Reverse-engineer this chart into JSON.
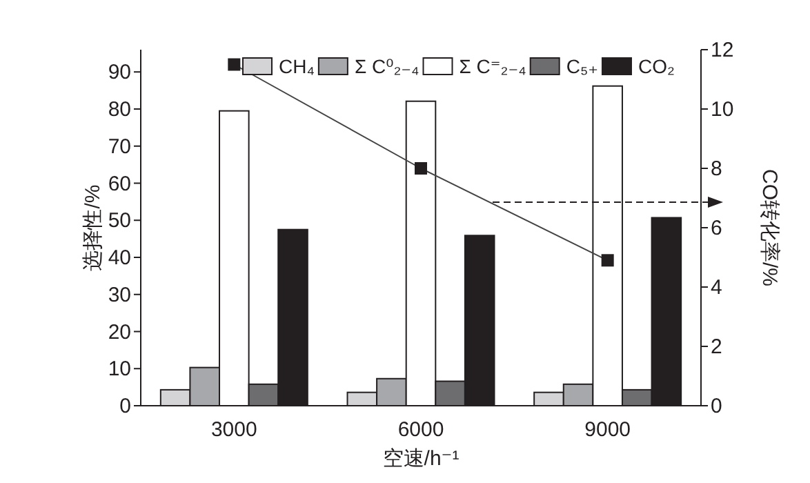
{
  "chart_data": {
    "type": "bar",
    "xlabel": "空速/h⁻¹",
    "ylabel": "选择性/%",
    "y2label": "CO转化率/%",
    "categories": [
      "3000",
      "6000",
      "9000"
    ],
    "series": [
      {
        "name": "CH₄",
        "color": "#d4d4d6",
        "values": [
          4.3,
          3.6,
          3.6
        ]
      },
      {
        "name": "Σ C⁰₂₋₄",
        "color": "#a7a8ab",
        "values": [
          10.3,
          7.3,
          5.8
        ]
      },
      {
        "name": "Σ C⁼₂₋₄",
        "color": "#ffffff",
        "values": [
          79.5,
          82.1,
          86.2
        ]
      },
      {
        "name": "C₅₊",
        "color": "#6d6d6f",
        "values": [
          5.8,
          6.6,
          4.3
        ]
      },
      {
        "name": "CO₂",
        "color": "#231f20",
        "values": [
          47.5,
          45.9,
          50.7
        ]
      },
      {
        "type": "line",
        "axis": "y2",
        "color": "#231f20",
        "marker": "square",
        "values": [
          11.5,
          8.0,
          4.9
        ]
      }
    ],
    "ylim": [
      0,
      96
    ],
    "yticks": [
      0,
      10,
      20,
      30,
      40,
      50,
      60,
      70,
      80,
      90
    ],
    "y2lim": [
      0,
      12
    ],
    "y2ticks": [
      0,
      2,
      4,
      6,
      8,
      10,
      12
    ],
    "legend": "top"
  }
}
